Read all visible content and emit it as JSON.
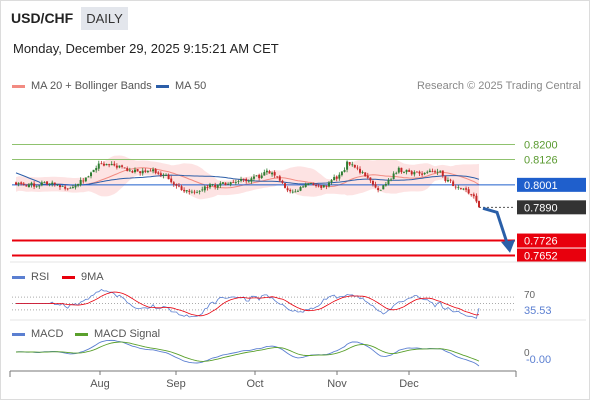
{
  "header": {
    "pair": "USD/CHF",
    "timeframe": "DAILY",
    "datetime": "Monday, December 29, 2025 9:15:21 AM CET",
    "credit": "Research © 2025 Trading Central"
  },
  "colors": {
    "bull": "#2e7d32",
    "bear": "#c62828",
    "ma20": "#f28b82",
    "band_fill": "#fcdada",
    "ma50": "#2c5ea8",
    "resistance": "#8fc26e",
    "support": "#e8000d",
    "pivot": "#1f5fcc",
    "last": "#333333",
    "arrow": "#2a5fa8",
    "rsi": "#5b7fd1",
    "rsi_ma": "#e8000d",
    "macd": "#5b7fd1",
    "macd_signal": "#5aa02c"
  },
  "chart_data": [
    {
      "type": "candlestick",
      "panel": "price",
      "legend": [
        {
          "label": "MA 20 + Bollinger Bands",
          "color": "#f28b82"
        },
        {
          "label": "MA 50",
          "color": "#2c5ea8"
        }
      ],
      "x_labels": [
        "Aug",
        "Sep",
        "Oct",
        "Nov",
        "Dec"
      ],
      "ylim": [
        0.762,
        0.842
      ],
      "ohlc": [],
      "levels": [
        {
          "value": 0.82,
          "label": "0.8200",
          "kind": "resistance"
        },
        {
          "value": 0.8126,
          "label": "0.8126",
          "kind": "resistance"
        },
        {
          "value": 0.8001,
          "label": "0.8001",
          "kind": "pivot"
        },
        {
          "value": 0.789,
          "label": "0.7890",
          "kind": "last"
        },
        {
          "value": 0.7726,
          "label": "0.7726",
          "kind": "support"
        },
        {
          "value": 0.7652,
          "label": "0.7652",
          "kind": "support"
        }
      ],
      "forecast_arrow": {
        "from": 0.789,
        "to": 0.768
      }
    },
    {
      "type": "line",
      "panel": "rsi",
      "legend": [
        {
          "label": "RSI",
          "color": "#5b7fd1"
        },
        {
          "label": "9MA",
          "color": "#e8000d"
        }
      ],
      "ylim": [
        0,
        100
      ],
      "guides": [
        70,
        50,
        30
      ],
      "guide_labels": {
        "upper": "70",
        "current": "35.53"
      },
      "rsi": [],
      "ma": []
    },
    {
      "type": "line",
      "panel": "macd",
      "legend": [
        {
          "label": "MACD",
          "color": "#5b7fd1"
        },
        {
          "label": "MACD Signal",
          "color": "#5aa02c"
        }
      ],
      "labels": {
        "zero": "0",
        "current": "-0.00"
      },
      "macd": [],
      "signal": []
    }
  ]
}
